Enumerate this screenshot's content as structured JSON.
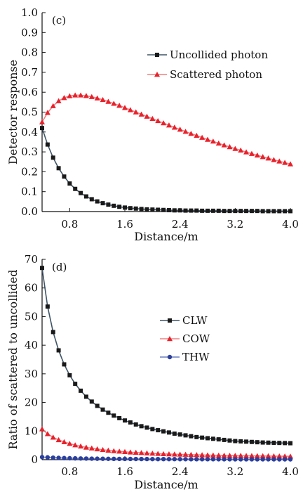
{
  "chart_data": [
    {
      "type": "line",
      "panel_label": "(c)",
      "xlabel": "Distance/m",
      "ylabel": "Detector response",
      "xlim": [
        0.4,
        4.0
      ],
      "ylim": [
        0.0,
        1.0
      ],
      "xticks": [
        0.8,
        1.6,
        2.4,
        3.2,
        4.0
      ],
      "xtick_labels": [
        "0.8",
        "1.6",
        "2.4",
        "3.2",
        "4.0"
      ],
      "yticks": [
        0.0,
        0.1,
        0.2,
        0.3,
        0.4,
        0.5,
        0.6,
        0.7,
        0.8,
        0.9,
        1.0
      ],
      "ytick_labels": [
        "0.0",
        "0.1",
        "0.2",
        "0.3",
        "0.4",
        "0.5",
        "0.6",
        "0.7",
        "0.8",
        "0.9",
        "1.0"
      ],
      "legend_position": "center-right",
      "x": [
        0.4,
        0.48,
        0.56,
        0.64,
        0.72,
        0.8,
        0.88,
        0.96,
        1.04,
        1.12,
        1.2,
        1.28,
        1.36,
        1.44,
        1.52,
        1.6,
        1.68,
        1.76,
        1.84,
        1.92,
        2.0,
        2.08,
        2.16,
        2.24,
        2.32,
        2.4,
        2.48,
        2.56,
        2.64,
        2.72,
        2.8,
        2.88,
        2.96,
        3.04,
        3.12,
        3.2,
        3.28,
        3.36,
        3.44,
        3.52,
        3.6,
        3.68,
        3.76,
        3.84,
        3.92,
        4.0
      ],
      "series": [
        {
          "name": "Uncollided photon",
          "color": "#1a1a1a",
          "line_color": "#3f5566",
          "marker": "square",
          "values": [
            0.42,
            0.337,
            0.271,
            0.218,
            0.176,
            0.141,
            0.114,
            0.093,
            0.076,
            0.062,
            0.051,
            0.042,
            0.035,
            0.029,
            0.024,
            0.02,
            0.017,
            0.015,
            0.013,
            0.011,
            0.01,
            0.009,
            0.008,
            0.007,
            0.006,
            0.006,
            0.005,
            0.005,
            0.005,
            0.004,
            0.004,
            0.004,
            0.004,
            0.003,
            0.003,
            0.003,
            0.003,
            0.003,
            0.003,
            0.003,
            0.002,
            0.002,
            0.002,
            0.002,
            0.002,
            0.002
          ]
        },
        {
          "name": "Scattered photon",
          "color": "#e8212b",
          "line_color": "#ef8080",
          "marker": "triangle",
          "values": [
            0.45,
            0.497,
            0.531,
            0.556,
            0.572,
            0.581,
            0.585,
            0.585,
            0.582,
            0.577,
            0.57,
            0.562,
            0.553,
            0.543,
            0.533,
            0.522,
            0.511,
            0.5,
            0.489,
            0.478,
            0.467,
            0.456,
            0.445,
            0.434,
            0.423,
            0.413,
            0.402,
            0.392,
            0.382,
            0.372,
            0.362,
            0.353,
            0.343,
            0.334,
            0.325,
            0.316,
            0.308,
            0.299,
            0.291,
            0.283,
            0.275,
            0.268,
            0.26,
            0.253,
            0.246,
            0.239
          ]
        }
      ]
    },
    {
      "type": "line",
      "panel_label": "(d)",
      "xlabel": "Distance/m",
      "ylabel": "Ratio of scattered to uncollided",
      "xlim": [
        0.4,
        4.0
      ],
      "ylim": [
        0,
        70
      ],
      "xticks": [
        0.8,
        1.6,
        2.4,
        3.2,
        4.0
      ],
      "xtick_labels": [
        "0.8",
        "1.6",
        "2.4",
        "3.2",
        "4.0"
      ],
      "yticks": [
        0,
        10,
        20,
        30,
        40,
        50,
        60,
        70
      ],
      "ytick_labels": [
        "0",
        "10",
        "20",
        "30",
        "40",
        "50",
        "60",
        "70"
      ],
      "legend_position": "center-right",
      "x": [
        0.4,
        0.48,
        0.56,
        0.64,
        0.72,
        0.8,
        0.88,
        0.96,
        1.04,
        1.12,
        1.2,
        1.28,
        1.36,
        1.44,
        1.52,
        1.6,
        1.68,
        1.76,
        1.84,
        1.92,
        2.0,
        2.08,
        2.16,
        2.24,
        2.32,
        2.4,
        2.48,
        2.56,
        2.64,
        2.72,
        2.8,
        2.88,
        2.96,
        3.04,
        3.12,
        3.2,
        3.28,
        3.36,
        3.44,
        3.52,
        3.6,
        3.68,
        3.76,
        3.84,
        3.92,
        4.0
      ],
      "series": [
        {
          "name": "CLW",
          "color": "#1a1a1a",
          "line_color": "#3f5566",
          "marker": "square",
          "values": [
            67.0,
            53.5,
            44.6,
            38.2,
            33.3,
            29.5,
            26.5,
            24.1,
            22.0,
            20.3,
            18.8,
            17.5,
            16.4,
            15.4,
            14.5,
            13.7,
            13.0,
            12.3,
            11.7,
            11.2,
            10.7,
            10.3,
            9.9,
            9.5,
            9.1,
            8.8,
            8.5,
            8.2,
            7.9,
            7.7,
            7.5,
            7.3,
            7.1,
            6.9,
            6.7,
            6.5,
            6.4,
            6.3,
            6.2,
            6.1,
            6.0,
            5.95,
            5.9,
            5.85,
            5.8,
            5.75
          ]
        },
        {
          "name": "COW",
          "color": "#e8212b",
          "line_color": "#ef8080",
          "marker": "triangle",
          "values": [
            10.7,
            9.0,
            7.8,
            6.9,
            6.2,
            5.6,
            5.1,
            4.7,
            4.3,
            4.0,
            3.7,
            3.45,
            3.25,
            3.05,
            2.9,
            2.75,
            2.6,
            2.5,
            2.4,
            2.3,
            2.2,
            2.1,
            2.0,
            1.95,
            1.9,
            1.85,
            1.8,
            1.75,
            1.7,
            1.65,
            1.6,
            1.55,
            1.5,
            1.48,
            1.45,
            1.42,
            1.4,
            1.38,
            1.35,
            1.33,
            1.3,
            1.28,
            1.25,
            1.22,
            1.2,
            1.18
          ]
        },
        {
          "name": "THW",
          "color": "#2a3f9e",
          "line_color": "#6d7fc0",
          "marker": "circle",
          "values": [
            0.9,
            0.8,
            0.7,
            0.62,
            0.55,
            0.5,
            0.46,
            0.42,
            0.39,
            0.36,
            0.34,
            0.32,
            0.3,
            0.28,
            0.27,
            0.26,
            0.25,
            0.24,
            0.23,
            0.22,
            0.21,
            0.2,
            0.2,
            0.19,
            0.19,
            0.18,
            0.18,
            0.17,
            0.17,
            0.16,
            0.16,
            0.16,
            0.15,
            0.15,
            0.15,
            0.14,
            0.14,
            0.14,
            0.14,
            0.13,
            0.13,
            0.13,
            0.13,
            0.12,
            0.12,
            0.12
          ]
        }
      ]
    }
  ]
}
